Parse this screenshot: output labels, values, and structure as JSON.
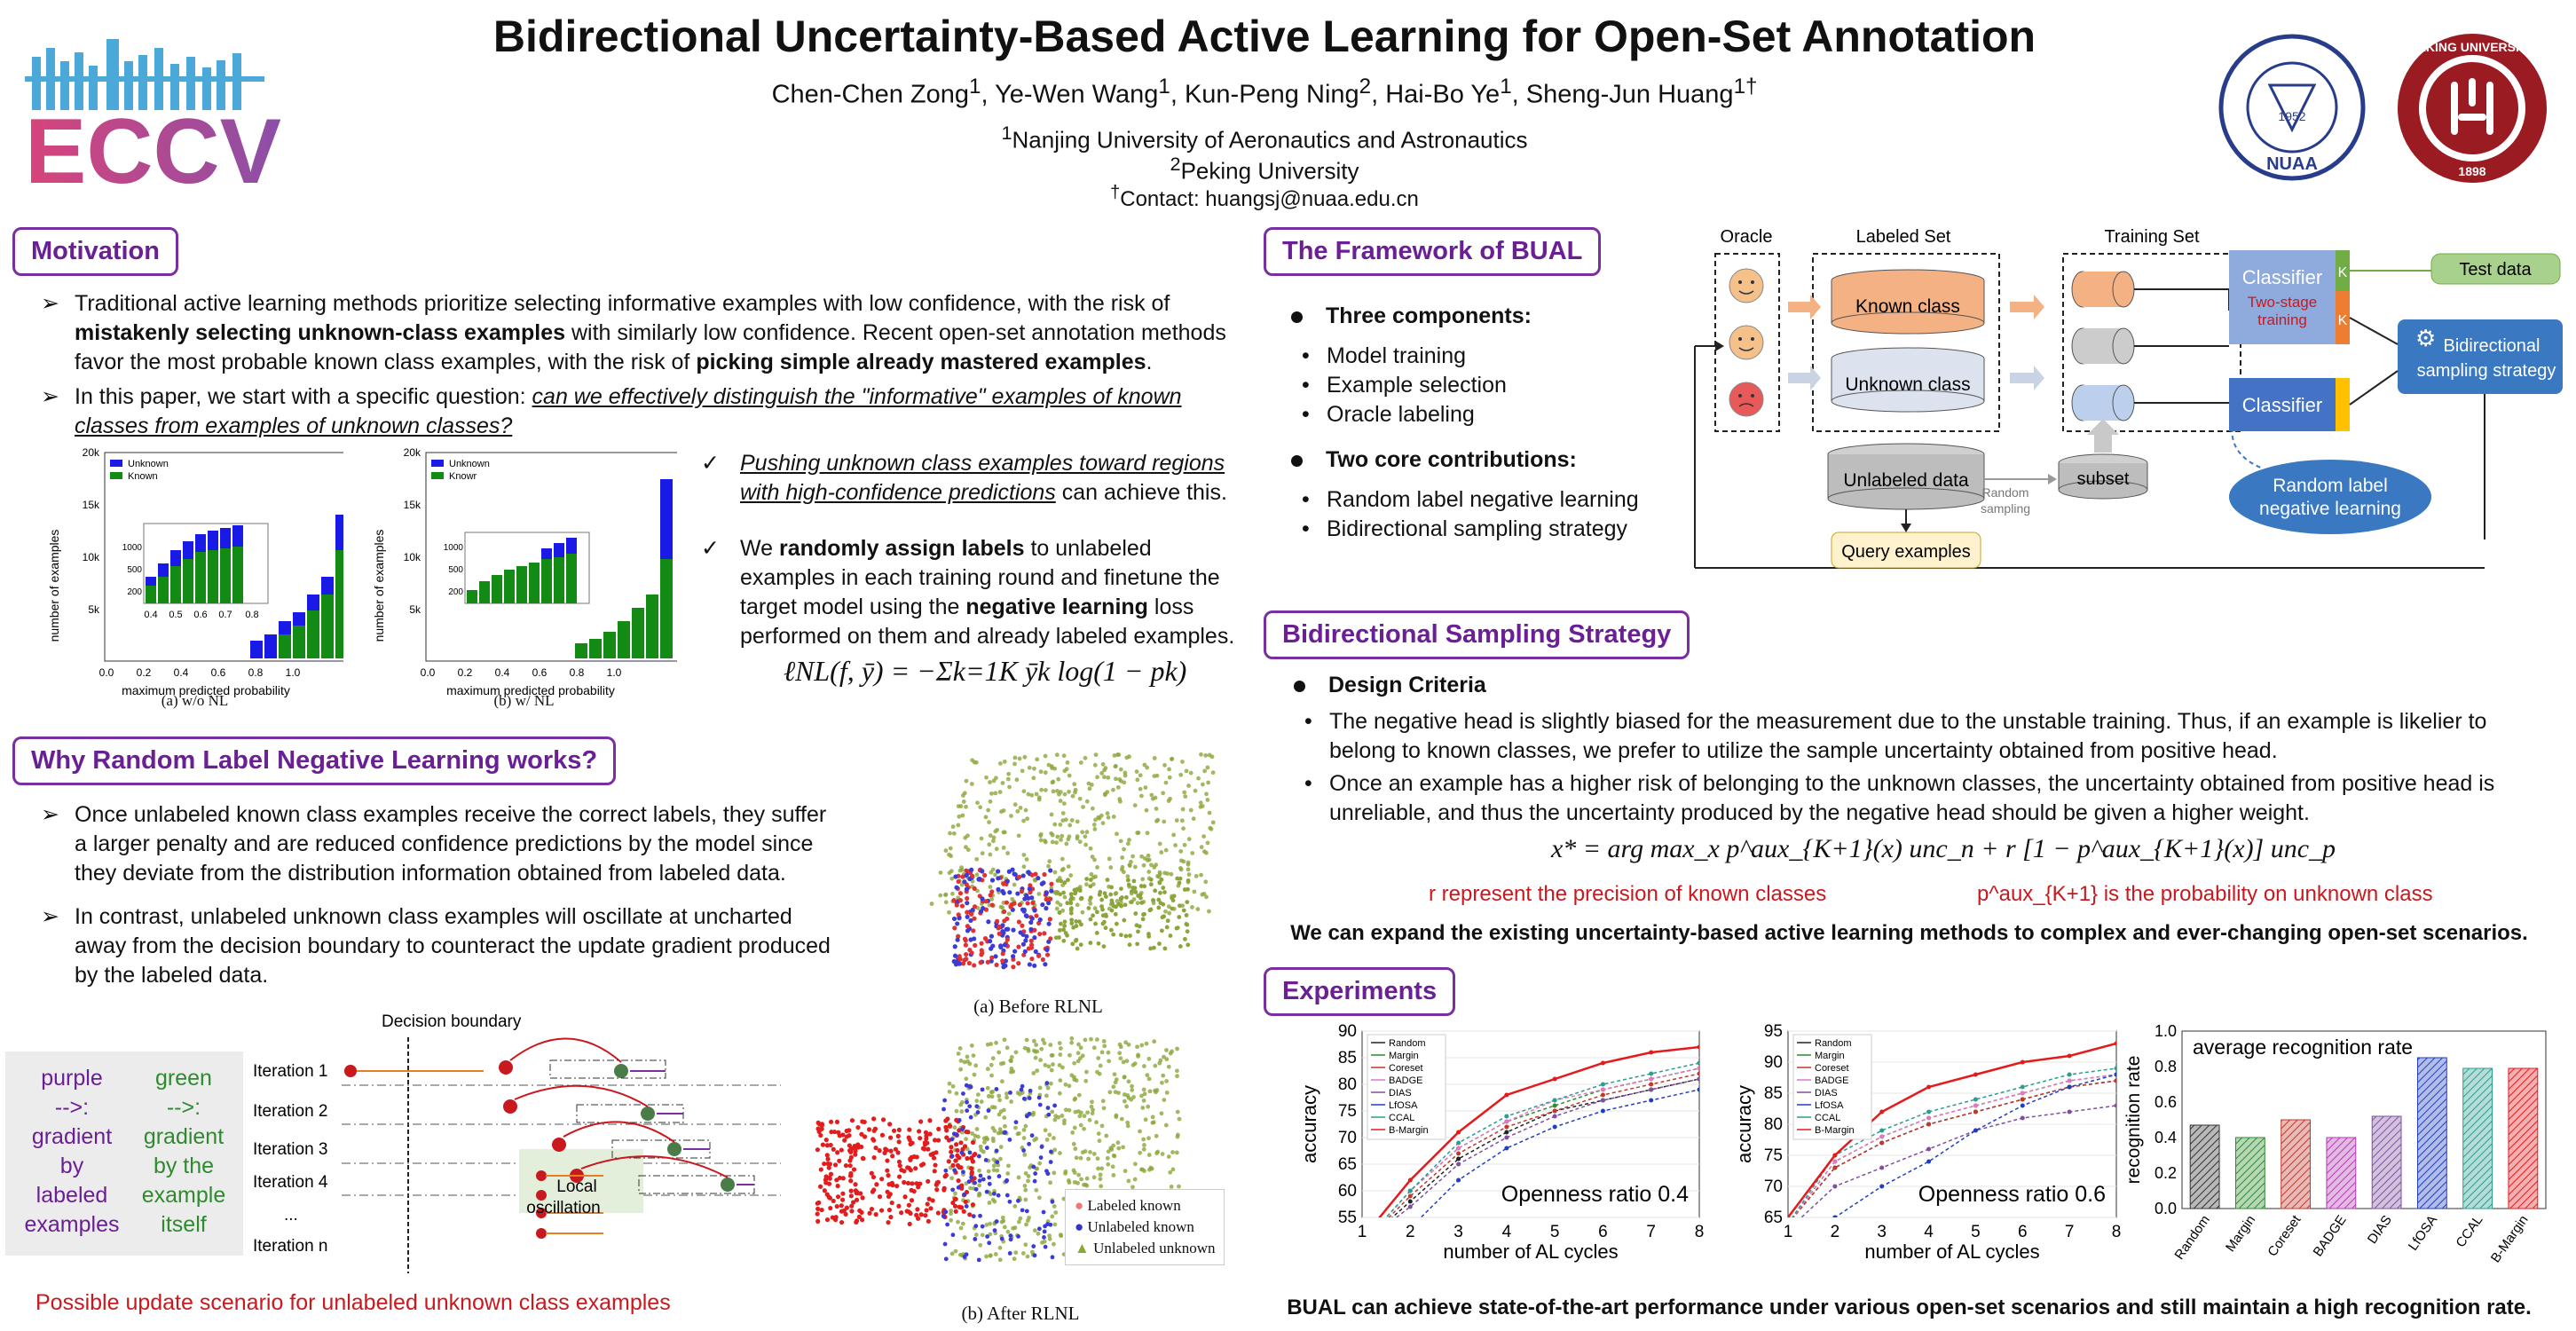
{
  "header": {
    "title": "Bidirectional Uncertainty-Based Active Learning for Open-Set Annotation",
    "authors": [
      {
        "name": "Chen-Chen Zong",
        "sup": "1"
      },
      {
        "name": "Ye-Wen Wang",
        "sup": "1"
      },
      {
        "name": "Kun-Peng Ning",
        "sup": "2"
      },
      {
        "name": "Hai-Bo Ye",
        "sup": "1"
      },
      {
        "name": "Sheng-Jun Huang",
        "sup": "1†"
      }
    ],
    "affil1": "Nanjing University of Aeronautics and Astronautics",
    "affil2": "Peking University",
    "contact": "Contact: huangsj@nuaa.edu.cn",
    "logo_text": "ECCV",
    "seal1_text": "NUAA",
    "seal1_year": "1952",
    "seal2_text": "PEKING UNIVERSITY",
    "seal2_year": "1898"
  },
  "motivation": {
    "heading": "Motivation",
    "b1_a": "Traditional active learning methods prioritize selecting informative examples with low confidence, with the risk of ",
    "b1_b": "mistakenly selecting unknown-class examples",
    "b1_c": " with similarly low confidence. Recent open-set annotation methods favor the most probable known class examples, with the risk of ",
    "b1_d": "picking simple already mastered examples",
    "b1_e": ".",
    "b2_a": "In this paper, we start with a specific question: ",
    "b2_b": "can we effectively distinguish the \"informative\" examples of known classes from examples of unknown classes?",
    "check1_a": "Pushing unknown class examples toward regions with high-confidence predictions",
    "check1_b": " can achieve this.",
    "check2_a": "We ",
    "check2_b": "randomly assign labels",
    "check2_c": " to unlabeled examples in each training round and finetune the target model using the ",
    "check2_d": "negative learning",
    "check2_e": " loss performed on them and already labeled examples.",
    "formula": "ℓNL(f, ȳ) = −Σk=1K ȳk log(1 − pk)",
    "hist_a_caption": "(a) w/o NL",
    "hist_b_caption": "(b) w/ NL",
    "hist_ylabel": "number of examples",
    "hist_xlabel": "maximum predicted probability",
    "legend_unknown": "Unknown",
    "legend_known": "Known",
    "legend_known_b": "Knowr"
  },
  "why": {
    "heading": "Why Random Label Negative Learning works?",
    "b1": "Once unlabeled known class examples receive the correct labels, they suffer a larger penalty and are reduced confidence predictions by the model since they deviate from the distribution information obtained from labeled data.",
    "b2": "In contrast, unlabeled unknown class examples will oscillate at uncharted away from the decision boundary to counteract the update gradient produced by the labeled data.",
    "legend_purple": "purple\n-->:\ngradient\nby\nlabeled\nexamples",
    "legend_green": "green\n-->:\ngradient\nby the\nexample\nitself",
    "decision_boundary": "Decision boundary",
    "iterations": [
      "Iteration 1",
      "Iteration 2",
      "Iteration 3",
      "Iteration 4",
      "...",
      "Iteration n"
    ],
    "local_osc": "Local\noscillation",
    "scenario_caption": "Possible update scenario for unlabeled unknown class examples",
    "scatter_a_caption": "(a) Before RLNL",
    "scatter_b_caption": "(b) After RLNL",
    "scatter_legend": [
      "Labeled known",
      "Unlabeled known",
      "Unlabeled unknown"
    ]
  },
  "framework": {
    "heading": "The Framework of BUAL",
    "three_components": "Three components:",
    "components": [
      "Model training",
      "Example selection",
      "Oracle labeling"
    ],
    "two_contrib": "Two core contributions:",
    "contribs": [
      "Random label negative learning",
      "Bidirectional sampling strategy"
    ],
    "diagram": {
      "oracle": "Oracle",
      "labeled_set": "Labeled Set",
      "training_set": "Training Set",
      "known_class": "Known class",
      "unknown_class": "Unknown class",
      "unlabeled_data": "Unlabeled data",
      "subset": "subset",
      "random_sampling": "Random\nsampling",
      "query_examples": "Query examples",
      "classifier1": "Classifier",
      "two_stage": "Two-stage\ntraining",
      "classifier2": "Classifier",
      "k1": "K",
      "k2": "K",
      "test_data": "Test data",
      "bidirectional": "Bidirectional\nsampling strategy",
      "rlnl": "Random label\nnegative learning"
    }
  },
  "bss": {
    "heading": "Bidirectional Sampling Strategy",
    "design": "Design Criteria",
    "c1": "The negative head is slightly biased for the measurement due to the unstable training. Thus, if an example is likelier to belong to known classes, we prefer to utilize the sample uncertainty obtained from positive head.",
    "c2": "Once an example has a higher risk of belonging to the unknown classes, the uncertainty obtained from positive head is unreliable, and thus the uncertainty produced by the negative head should be given a higher weight.",
    "formula": "x* = arg max_x p^aux_{K+1}(x) unc_n + r [1 − p^aux_{K+1}(x)] unc_p",
    "note_r": "r represent the precision of known classes",
    "note_p": "p^aux_{K+1} is the probability on unknown class",
    "conclusion": "We can expand the existing uncertainty-based active learning methods to complex and ever-changing open-set scenarios."
  },
  "experiments": {
    "heading": "Experiments",
    "conclusion": "BUAL can achieve state-of-the-art performance under various open-set scenarios and still maintain a high recognition rate.",
    "colors": {
      "Random": "#222222",
      "Margin": "#2e8b2e",
      "Coreset": "#c0392b",
      "BADGE": "#e377c2",
      "DIAS": "#7f4f9f",
      "LfOSA": "#1f3fbf",
      "CCAL": "#2a9d8f",
      "B-Margin": "#e41a1c"
    }
  },
  "chart_data": [
    {
      "type": "line",
      "title": "Openness ratio 0.4",
      "xlabel": "number of AL cycles",
      "ylabel": "accuracy",
      "x": [
        1,
        2,
        3,
        4,
        5,
        6,
        7,
        8
      ],
      "xlim": [
        1,
        8
      ],
      "ylim": [
        55,
        90
      ],
      "yticks": [
        55,
        60,
        65,
        70,
        75,
        80,
        85,
        90
      ],
      "series": [
        {
          "name": "Random",
          "values": [
            50,
            58,
            66,
            71,
            75,
            77,
            79,
            81
          ]
        },
        {
          "name": "Margin",
          "values": [
            50,
            60,
            68,
            73,
            76,
            79,
            81,
            83
          ]
        },
        {
          "name": "Coreset",
          "values": [
            50,
            59,
            67,
            72,
            75,
            78,
            80,
            82
          ]
        },
        {
          "name": "BADGE",
          "values": [
            50,
            60,
            68,
            73,
            77,
            79,
            81,
            83
          ]
        },
        {
          "name": "DIAS",
          "values": [
            50,
            57,
            65,
            70,
            74,
            77,
            79,
            81
          ]
        },
        {
          "name": "LfOSA",
          "values": [
            49,
            53,
            62,
            68,
            72,
            75,
            77,
            79
          ]
        },
        {
          "name": "CCAL",
          "values": [
            50,
            60,
            69,
            74,
            77,
            80,
            82,
            84
          ]
        },
        {
          "name": "B-Margin",
          "values": [
            51,
            62,
            71,
            78,
            81,
            84,
            86,
            87
          ]
        }
      ]
    },
    {
      "type": "line",
      "title": "Openness ratio 0.6",
      "xlabel": "number of AL cycles",
      "ylabel": "accuracy",
      "x": [
        1,
        2,
        3,
        4,
        5,
        6,
        7,
        8
      ],
      "xlim": [
        1,
        8
      ],
      "ylim": [
        65,
        95
      ],
      "yticks": [
        65,
        70,
        75,
        80,
        85,
        90,
        95
      ],
      "series": [
        {
          "name": "Random",
          "values": [
            64,
            73,
            77,
            80,
            82,
            84,
            86,
            87
          ]
        },
        {
          "name": "Margin",
          "values": [
            64,
            74,
            78,
            81,
            83,
            85,
            87,
            88
          ]
        },
        {
          "name": "Coreset",
          "values": [
            64,
            73,
            77,
            80,
            82,
            84,
            86,
            87
          ]
        },
        {
          "name": "BADGE",
          "values": [
            64,
            74,
            78,
            81,
            83,
            85,
            87,
            88
          ]
        },
        {
          "name": "DIAS",
          "values": [
            63,
            70,
            73,
            76,
            79,
            81,
            82,
            83
          ]
        },
        {
          "name": "LfOSA",
          "values": [
            62,
            65,
            70,
            74,
            79,
            83,
            86,
            88
          ]
        },
        {
          "name": "CCAL",
          "values": [
            64,
            75,
            79,
            82,
            84,
            86,
            88,
            89
          ]
        },
        {
          "name": "B-Margin",
          "values": [
            65,
            75,
            82,
            86,
            88,
            90,
            91,
            93
          ]
        }
      ]
    },
    {
      "type": "bar",
      "title": "average recognition rate",
      "ylabel": "recognition rate",
      "categories": [
        "Random",
        "Margin",
        "Coreset",
        "BADGE",
        "DIAS",
        "LfOSA",
        "CCAL",
        "B-Margin"
      ],
      "values": [
        0.47,
        0.4,
        0.5,
        0.4,
        0.52,
        0.85,
        0.79,
        0.79
      ],
      "ylim": [
        0,
        1.0
      ],
      "yticks": [
        0.0,
        0.2,
        0.4,
        0.6,
        0.8,
        1.0
      ]
    }
  ]
}
